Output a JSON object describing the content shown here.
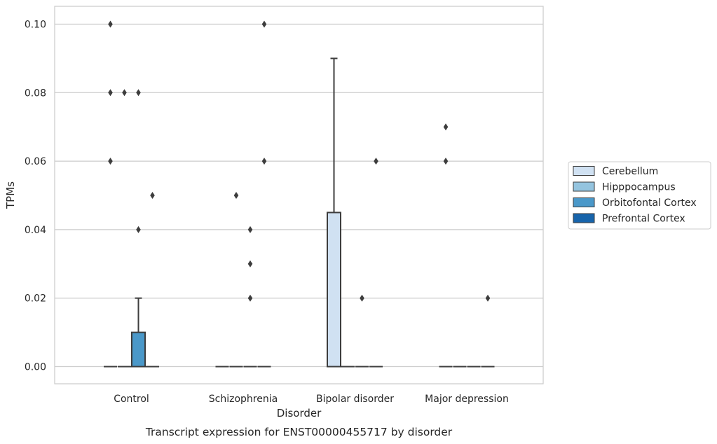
{
  "chart_data": {
    "type": "box",
    "title": "",
    "xlabel": "Disorder",
    "ylabel": "TPMs",
    "caption": "Transcript expression for ENST00000455717 by disorder",
    "categories": [
      "Control",
      "Schizophrenia",
      "Bipolar disorder",
      "Major depression"
    ],
    "ylim": [
      -0.005,
      0.105
    ],
    "yticks": [
      0.0,
      0.02,
      0.04,
      0.06,
      0.08,
      0.1
    ],
    "ytick_labels": [
      "0.00",
      "0.02",
      "0.04",
      "0.06",
      "0.08",
      "0.10"
    ],
    "grid": true,
    "legend": {
      "placement": "center-right-outside",
      "entries": [
        {
          "name": "Cerebellum",
          "color": "#d0e1f2"
        },
        {
          "name": "Hipppocampus",
          "color": "#94c4df"
        },
        {
          "name": "Orbitofontal Cortex",
          "color": "#4a98c9"
        },
        {
          "name": "Prefrontal Cortex",
          "color": "#1764ab"
        }
      ]
    },
    "series": [
      {
        "name": "Cerebellum",
        "color": "#d0e1f2",
        "boxes": [
          {
            "category": "Control",
            "q1": 0.0,
            "median": 0.0,
            "q3": 0.0,
            "whisker_low": 0.0,
            "whisker_high": 0.0,
            "outliers": [
              0.1,
              0.08,
              0.06
            ]
          },
          {
            "category": "Schizophrenia",
            "q1": 0.0,
            "median": 0.0,
            "q3": 0.0,
            "whisker_low": 0.0,
            "whisker_high": 0.0,
            "outliers": []
          },
          {
            "category": "Bipolar disorder",
            "q1": 0.0,
            "median": 0.0,
            "q3": 0.045,
            "whisker_low": 0.0,
            "whisker_high": 0.09,
            "outliers": []
          },
          {
            "category": "Major depression",
            "q1": 0.0,
            "median": 0.0,
            "q3": 0.0,
            "whisker_low": 0.0,
            "whisker_high": 0.0,
            "outliers": [
              0.07,
              0.06
            ]
          }
        ]
      },
      {
        "name": "Hipppocampus",
        "color": "#94c4df",
        "boxes": [
          {
            "category": "Control",
            "q1": 0.0,
            "median": 0.0,
            "q3": 0.0,
            "whisker_low": 0.0,
            "whisker_high": 0.0,
            "outliers": [
              0.08
            ]
          },
          {
            "category": "Schizophrenia",
            "q1": 0.0,
            "median": 0.0,
            "q3": 0.0,
            "whisker_low": 0.0,
            "whisker_high": 0.0,
            "outliers": [
              0.05
            ]
          },
          {
            "category": "Bipolar disorder",
            "q1": 0.0,
            "median": 0.0,
            "q3": 0.0,
            "whisker_low": 0.0,
            "whisker_high": 0.0,
            "outliers": []
          },
          {
            "category": "Major depression",
            "q1": 0.0,
            "median": 0.0,
            "q3": 0.0,
            "whisker_low": 0.0,
            "whisker_high": 0.0,
            "outliers": []
          }
        ]
      },
      {
        "name": "Orbitofontal Cortex",
        "color": "#4a98c9",
        "boxes": [
          {
            "category": "Control",
            "q1": 0.0,
            "median": 0.0,
            "q3": 0.01,
            "whisker_low": 0.0,
            "whisker_high": 0.02,
            "outliers": [
              0.08,
              0.04
            ]
          },
          {
            "category": "Schizophrenia",
            "q1": 0.0,
            "median": 0.0,
            "q3": 0.0,
            "whisker_low": 0.0,
            "whisker_high": 0.0,
            "outliers": [
              0.04,
              0.03,
              0.02
            ]
          },
          {
            "category": "Bipolar disorder",
            "q1": 0.0,
            "median": 0.0,
            "q3": 0.0,
            "whisker_low": 0.0,
            "whisker_high": 0.0,
            "outliers": [
              0.02
            ]
          },
          {
            "category": "Major depression",
            "q1": 0.0,
            "median": 0.0,
            "q3": 0.0,
            "whisker_low": 0.0,
            "whisker_high": 0.0,
            "outliers": []
          }
        ]
      },
      {
        "name": "Prefrontal Cortex",
        "color": "#1764ab",
        "boxes": [
          {
            "category": "Control",
            "q1": 0.0,
            "median": 0.0,
            "q3": 0.0,
            "whisker_low": 0.0,
            "whisker_high": 0.0,
            "outliers": [
              0.05
            ]
          },
          {
            "category": "Schizophrenia",
            "q1": 0.0,
            "median": 0.0,
            "q3": 0.0,
            "whisker_low": 0.0,
            "whisker_high": 0.0,
            "outliers": [
              0.1,
              0.06
            ]
          },
          {
            "category": "Bipolar disorder",
            "q1": 0.0,
            "median": 0.0,
            "q3": 0.0,
            "whisker_low": 0.0,
            "whisker_high": 0.0,
            "outliers": [
              0.06
            ]
          },
          {
            "category": "Major depression",
            "q1": 0.0,
            "median": 0.0,
            "q3": 0.0,
            "whisker_low": 0.0,
            "whisker_high": 0.0,
            "outliers": [
              0.02
            ]
          }
        ]
      }
    ]
  }
}
